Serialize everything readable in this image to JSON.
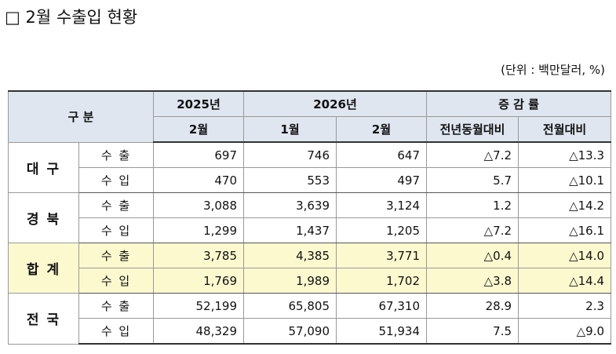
{
  "title": "□ 2월 수출입 현황",
  "unit": "(단위 : 백만달러, %)",
  "table": {
    "header": {
      "category": "구 분",
      "years": [
        "2025년",
        "2026년"
      ],
      "change": "증 감 률",
      "sub": [
        "2월",
        "1월",
        "2월",
        "전년동월대비",
        "전월대비"
      ]
    },
    "groups": [
      {
        "region": "대 구",
        "highlight": false,
        "rows": [
          {
            "kind": "수 출",
            "cells": [
              "697",
              "746",
              "647",
              "△7.2",
              "△13.3"
            ]
          },
          {
            "kind": "수 입",
            "cells": [
              "470",
              "553",
              "497",
              "5.7",
              "△10.1"
            ]
          }
        ]
      },
      {
        "region": "경 북",
        "highlight": false,
        "rows": [
          {
            "kind": "수 출",
            "cells": [
              "3,088",
              "3,639",
              "3,124",
              "1.2",
              "△14.2"
            ]
          },
          {
            "kind": "수 입",
            "cells": [
              "1,299",
              "1,437",
              "1,205",
              "△7.2",
              "△16.1"
            ]
          }
        ]
      },
      {
        "region": "합 계",
        "highlight": true,
        "rows": [
          {
            "kind": "수 출",
            "cells": [
              "3,785",
              "4,385",
              "3,771",
              "△0.4",
              "△14.0"
            ]
          },
          {
            "kind": "수 입",
            "cells": [
              "1,769",
              "1,989",
              "1,702",
              "△3.8",
              "△14.4"
            ]
          }
        ]
      },
      {
        "region": "전 국",
        "highlight": false,
        "rows": [
          {
            "kind": "수 출",
            "cells": [
              "52,199",
              "65,805",
              "67,310",
              "28.9",
              "2.3"
            ]
          },
          {
            "kind": "수 입",
            "cells": [
              "48,329",
              "57,090",
              "51,934",
              "7.5",
              "△9.0"
            ]
          }
        ]
      }
    ]
  }
}
